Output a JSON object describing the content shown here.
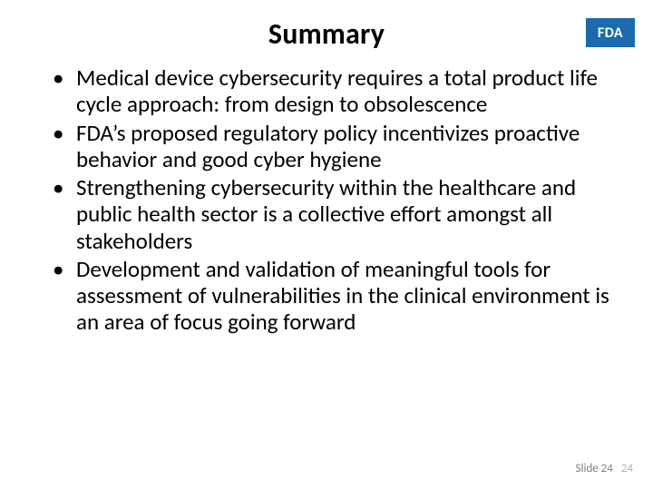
{
  "slide": {
    "title": "Summary",
    "logo_text": "FDA",
    "logo_bg": "#1a6aad",
    "logo_fg": "#ffffff",
    "bullets": [
      "Medical device cybersecurity requires a total product life cycle approach: from design to obsolescence",
      "FDA’s proposed regulatory policy incentivizes proactive behavior and good cyber hygiene",
      "Strengthening cybersecurity within the healthcare and public health sector is a collective effort amongst all stakeholders",
      "Development and validation of meaningful tools for assessment of vulnerabilities in the clinical environment is an area of focus going forward"
    ],
    "footer_label": "Slide 24",
    "footer_number": "24",
    "background_color": "#ffffff",
    "text_color": "#000000",
    "title_fontsize": 32,
    "body_fontsize": 25,
    "footer_fontsize": 13,
    "footer_color": "#7f7f7f",
    "footer_number_color": "#a8b0c0"
  }
}
